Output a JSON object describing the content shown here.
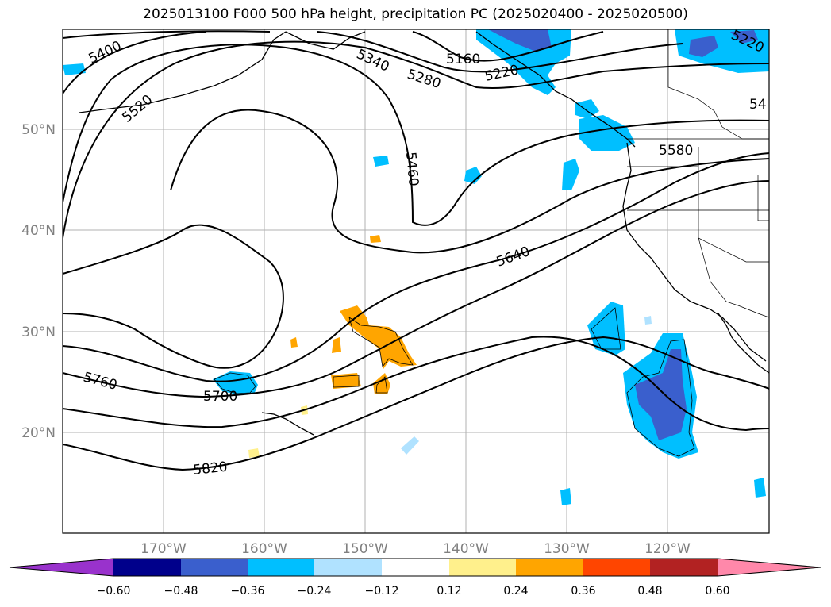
{
  "title": "2025013100 F000 500 hPa height, precipitation PC (2025020400 - 2025020500)",
  "lat_labels": [
    "50°N",
    "40°N",
    "30°N",
    "20°N"
  ],
  "lon_labels": [
    "170°W",
    "160°W",
    "150°W",
    "140°W",
    "130°W",
    "120°W"
  ],
  "contour_labels": [
    "5400",
    "5520",
    "5340",
    "5280",
    "5160",
    "5220",
    "5220",
    "54",
    "5460",
    "5580",
    "5640",
    "5760",
    "5700",
    "5820"
  ],
  "colorbar": {
    "ticks": [
      "−0.60",
      "−0.48",
      "−0.36",
      "−0.24",
      "−0.12",
      "0.12",
      "0.24",
      "0.36",
      "0.48",
      "0.60"
    ],
    "colors": [
      "#9932cc",
      "#00008b",
      "#3a5fcd",
      "#00bfff",
      "#b0e2ff",
      "#ffffff",
      "#fff08c",
      "#ffa500",
      "#ff4500",
      "#b22222",
      "#ff88aa"
    ]
  }
}
